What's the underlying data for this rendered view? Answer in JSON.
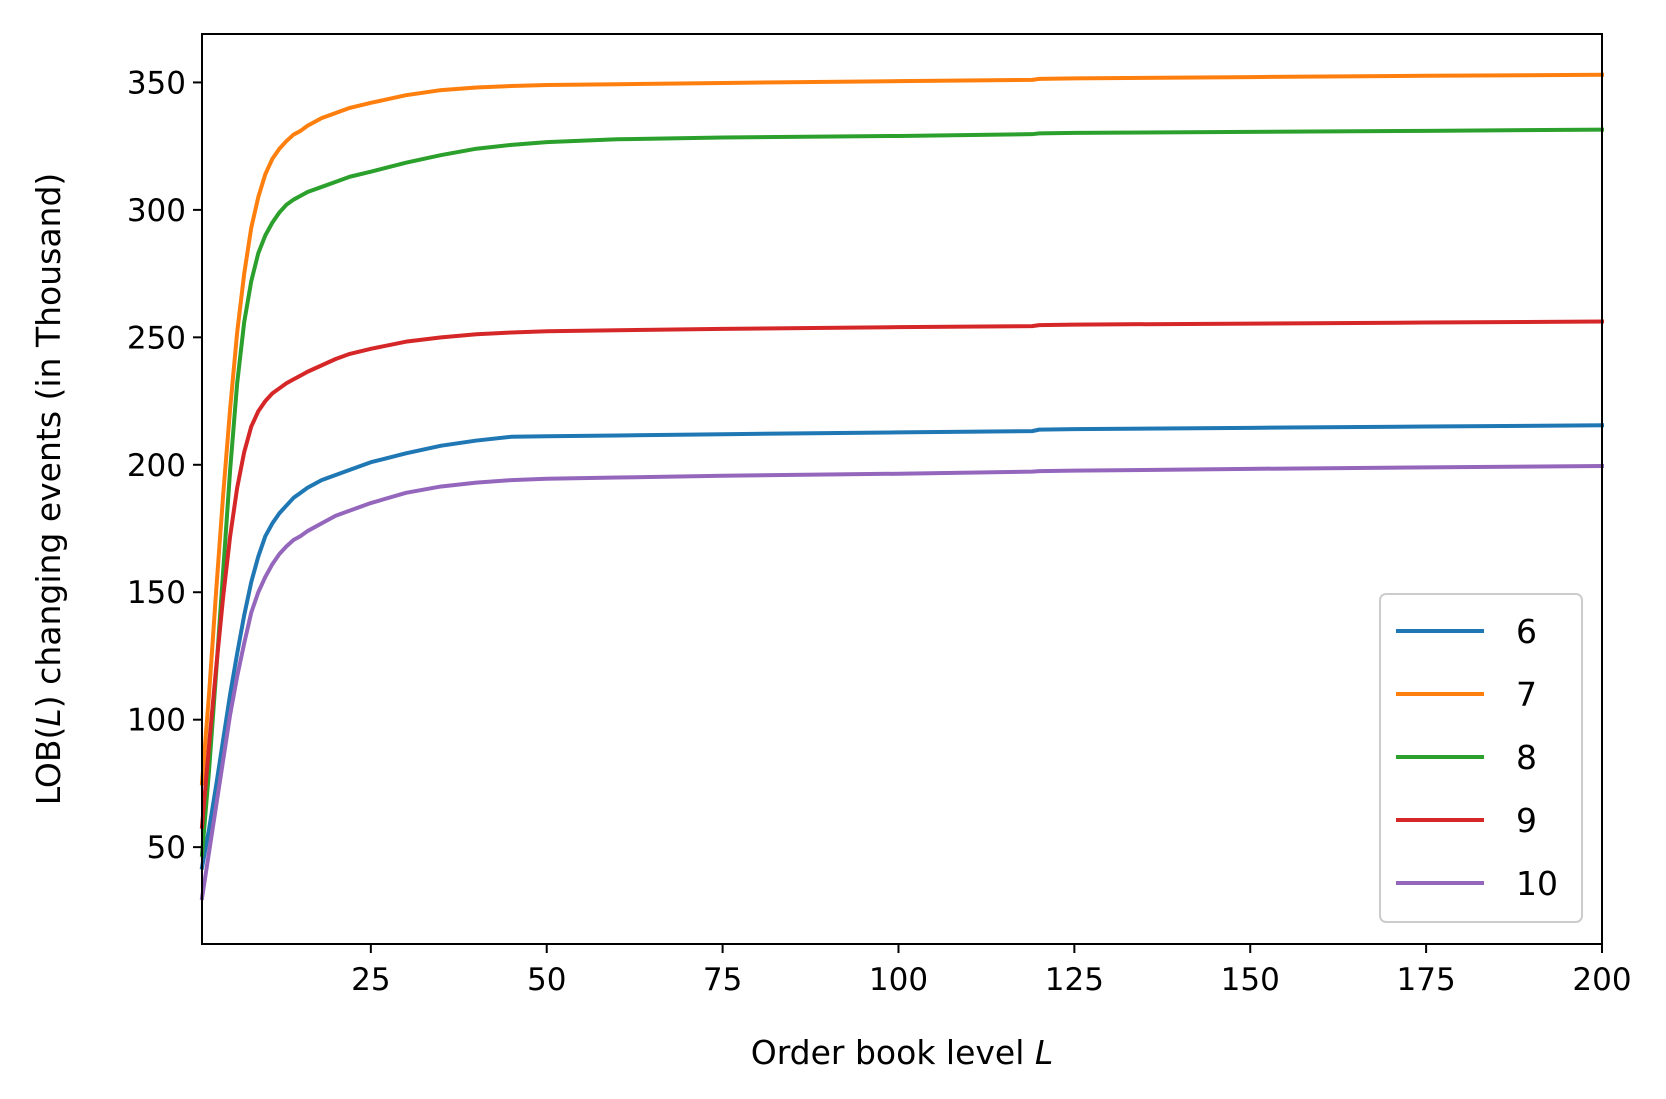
{
  "chart_data": {
    "type": "line",
    "xlabel": {
      "prefix": "Order book level ",
      "variable": "L"
    },
    "ylabel": {
      "prefix": "LOB(",
      "variable": "L",
      "suffix": ") changing events (in Thousand)"
    },
    "xlim": [
      1,
      200
    ],
    "ylim": [
      12,
      369
    ],
    "xticks": [
      25,
      50,
      75,
      100,
      125,
      150,
      175,
      200
    ],
    "yticks": [
      50,
      100,
      150,
      200,
      250,
      300,
      350
    ],
    "grid": false,
    "legend_position": "lower right",
    "x": [
      1,
      2,
      3,
      4,
      5,
      6,
      7,
      8,
      9,
      10,
      11,
      12,
      13,
      14,
      15,
      16,
      18,
      20,
      22,
      25,
      30,
      35,
      40,
      45,
      50,
      60,
      75,
      100,
      119,
      120,
      125,
      150,
      175,
      200
    ],
    "series": [
      {
        "name": "6",
        "color": "#1f77b4",
        "values": [
          42,
          57,
          74,
          92,
          110,
          126,
          141,
          154,
          164,
          172,
          177,
          181,
          184,
          187,
          189,
          191,
          194,
          196,
          198,
          201,
          204.5,
          207.5,
          209.5,
          211,
          211.2,
          211.5,
          212,
          212.7,
          213.2,
          213.8,
          214,
          214.5,
          215,
          215.5
        ]
      },
      {
        "name": "7",
        "color": "#ff7f0e",
        "values": [
          75,
          110,
          150,
          188,
          222,
          252,
          275,
          293,
          305,
          314,
          320,
          324,
          327,
          329.5,
          331,
          333,
          336,
          338,
          340,
          342,
          345,
          347,
          348,
          348.6,
          349,
          349.3,
          349.8,
          350.5,
          351,
          351.4,
          351.6,
          352.1,
          352.6,
          353
        ]
      },
      {
        "name": "8",
        "color": "#2ca02c",
        "values": [
          47,
          80,
          118,
          158,
          198,
          232,
          256,
          272,
          283,
          290,
          295,
          299,
          302,
          304,
          305.5,
          307,
          309,
          311,
          313,
          315,
          318.5,
          321.5,
          324,
          325.5,
          326.6,
          327.7,
          328.4,
          329,
          329.7,
          330,
          330.2,
          330.6,
          331,
          331.5
        ]
      },
      {
        "name": "9",
        "color": "#d62728",
        "values": [
          58,
          90,
          120,
          148,
          172,
          191,
          205,
          215,
          221,
          225,
          228,
          230,
          232,
          233.5,
          235,
          236.5,
          239,
          241.5,
          243.5,
          245.5,
          248.3,
          250,
          251.2,
          251.9,
          252.4,
          252.8,
          253.3,
          254,
          254.4,
          254.8,
          255,
          255.4,
          255.8,
          256.2
        ]
      },
      {
        "name": "10",
        "color": "#9467bd",
        "values": [
          30,
          48,
          66,
          84,
          102,
          117,
          130,
          142,
          150,
          156,
          161,
          165,
          168,
          170.5,
          172,
          174,
          177,
          180,
          182,
          185,
          189,
          191.5,
          193,
          194,
          194.5,
          195,
          195.7,
          196.5,
          197.3,
          197.5,
          197.7,
          198.4,
          199,
          199.5
        ]
      }
    ]
  }
}
